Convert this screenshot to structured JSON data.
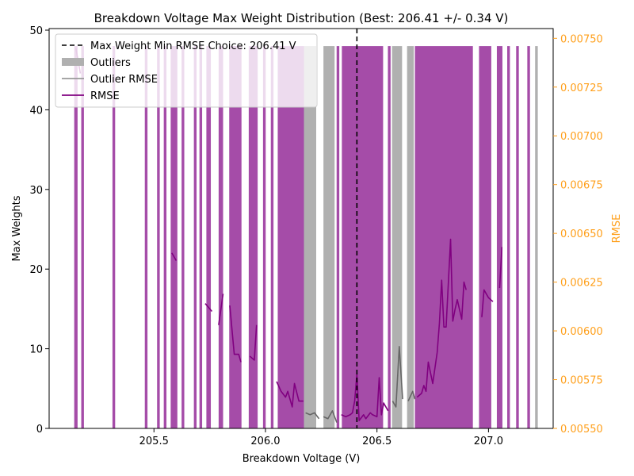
{
  "chart_data": {
    "type": "bar",
    "title": "Breakdown Voltage Max Weight Distribution (Best: 206.41 +/- 0.34 V)",
    "xlabel": "Breakdown Voltage (V)",
    "ylabel": "Max Weights",
    "y2label": "RMSE",
    "xlim": [
      205.03,
      207.29
    ],
    "ylim": [
      0,
      50.2
    ],
    "y2lim": [
      0.0055,
      0.00755
    ],
    "xticks": [
      "205.5",
      "206.0",
      "206.5",
      "207.0"
    ],
    "xtick_values": [
      205.5,
      206.0,
      206.5,
      207.0
    ],
    "yticks": [
      "0",
      "10",
      "20",
      "30",
      "40",
      "50"
    ],
    "ytick_values": [
      0,
      10,
      20,
      30,
      40,
      50
    ],
    "y2ticks": [
      "0.00550",
      "0.00575",
      "0.00600",
      "0.00625",
      "0.00650",
      "0.00675",
      "0.00700",
      "0.00725",
      "0.00750"
    ],
    "y2tick_values": [
      0.0055,
      0.00575,
      0.006,
      0.00625,
      0.0065,
      0.00675,
      0.007,
      0.00725,
      0.0075
    ],
    "grid": false,
    "legend_position": "top-left",
    "bar_height": 48,
    "colors": {
      "inlier_bar": "#a54ca8",
      "outlier_bar": "#b0b0b0",
      "rmse_line": "#800080",
      "outlier_rmse_line": "#666666",
      "best_line": "#000000",
      "right_axis": "#ff9f1a"
    },
    "best_choice": 206.41,
    "legend": [
      {
        "label": "Max Weight Min RMSE Choice: 206.41 V",
        "style": "dashed"
      },
      {
        "label": "Outliers",
        "style": "patch"
      },
      {
        "label": "Outlier RMSE",
        "style": "gray-line"
      },
      {
        "label": "RMSE",
        "style": "purple-line"
      }
    ],
    "bars": [
      {
        "x": 205.15,
        "w": 0.015,
        "outlier": false
      },
      {
        "x": 205.18,
        "w": 0.012,
        "outlier": false
      },
      {
        "x": 205.32,
        "w": 0.012,
        "outlier": false
      },
      {
        "x": 205.465,
        "w": 0.012,
        "outlier": false
      },
      {
        "x": 205.52,
        "w": 0.012,
        "outlier": false
      },
      {
        "x": 205.55,
        "w": 0.012,
        "outlier": false
      },
      {
        "x": 205.59,
        "w": 0.03,
        "outlier": false
      },
      {
        "x": 205.63,
        "w": 0.012,
        "outlier": false
      },
      {
        "x": 205.685,
        "w": 0.012,
        "outlier": false
      },
      {
        "x": 205.71,
        "w": 0.012,
        "outlier": false
      },
      {
        "x": 205.745,
        "w": 0.02,
        "outlier": false
      },
      {
        "x": 205.8,
        "w": 0.02,
        "outlier": false
      },
      {
        "x": 205.865,
        "w": 0.055,
        "outlier": false
      },
      {
        "x": 205.945,
        "w": 0.04,
        "outlier": false
      },
      {
        "x": 205.995,
        "w": 0.012,
        "outlier": false
      },
      {
        "x": 206.03,
        "w": 0.012,
        "outlier": false
      },
      {
        "x": 206.115,
        "w": 0.12,
        "outlier": false
      },
      {
        "x": 206.2,
        "w": 0.055,
        "outlier": true
      },
      {
        "x": 206.285,
        "w": 0.05,
        "outlier": true
      },
      {
        "x": 206.325,
        "w": 0.012,
        "outlier": false
      },
      {
        "x": 206.435,
        "w": 0.185,
        "outlier": false
      },
      {
        "x": 206.555,
        "w": 0.012,
        "outlier": false
      },
      {
        "x": 206.59,
        "w": 0.045,
        "outlier": true
      },
      {
        "x": 206.65,
        "w": 0.03,
        "outlier": true
      },
      {
        "x": 206.8,
        "w": 0.26,
        "outlier": false
      },
      {
        "x": 206.985,
        "w": 0.055,
        "outlier": false
      },
      {
        "x": 207.05,
        "w": 0.025,
        "outlier": false
      },
      {
        "x": 207.09,
        "w": 0.012,
        "outlier": false
      },
      {
        "x": 207.13,
        "w": 0.012,
        "outlier": false
      },
      {
        "x": 207.18,
        "w": 0.012,
        "outlier": false
      },
      {
        "x": 207.215,
        "w": 0.012,
        "outlier": true
      }
    ],
    "rmse_segments": [
      {
        "outlier": false,
        "points": [
          [
            205.15,
            0.00745
          ],
          [
            205.17,
            0.00732
          ]
        ]
      },
      {
        "outlier": false,
        "points": [
          [
            205.58,
            0.0064
          ],
          [
            205.6,
            0.00636
          ]
        ]
      },
      {
        "outlier": false,
        "points": [
          [
            205.73,
            0.00614
          ],
          [
            205.76,
            0.0061
          ]
        ]
      },
      {
        "outlier": false,
        "points": [
          [
            205.79,
            0.00603
          ],
          [
            205.81,
            0.00619
          ]
        ]
      },
      {
        "outlier": false,
        "points": [
          [
            205.84,
            0.00613
          ],
          [
            205.86,
            0.00588
          ],
          [
            205.88,
            0.00588
          ],
          [
            205.89,
            0.00584
          ]
        ]
      },
      {
        "outlier": false,
        "points": [
          [
            205.93,
            0.00587
          ],
          [
            205.95,
            0.00585
          ],
          [
            205.96,
            0.00603
          ]
        ]
      },
      {
        "outlier": false,
        "points": [
          [
            206.05,
            0.00574
          ],
          [
            206.07,
            0.00569
          ],
          [
            206.09,
            0.00566
          ],
          [
            206.1,
            0.00569
          ],
          [
            206.12,
            0.00561
          ],
          [
            206.13,
            0.00573
          ],
          [
            206.15,
            0.00564
          ],
          [
            206.17,
            0.00564
          ]
        ]
      },
      {
        "outlier": true,
        "points": [
          [
            206.18,
            0.00558
          ],
          [
            206.2,
            0.00557
          ],
          [
            206.22,
            0.00558
          ],
          [
            206.24,
            0.00555
          ]
        ]
      },
      {
        "outlier": true,
        "points": [
          [
            206.26,
            0.00556
          ],
          [
            206.28,
            0.00555
          ],
          [
            206.3,
            0.00559
          ],
          [
            206.32,
            0.00553
          ]
        ]
      },
      {
        "outlier": false,
        "points": [
          [
            206.34,
            0.00557
          ],
          [
            206.36,
            0.00556
          ],
          [
            206.38,
            0.00557
          ],
          [
            206.39,
            0.00558
          ],
          [
            206.4,
            0.00564
          ],
          [
            206.41,
            0.00578
          ],
          [
            206.42,
            0.00554
          ],
          [
            206.44,
            0.00557
          ],
          [
            206.45,
            0.00555
          ],
          [
            206.47,
            0.00558
          ],
          [
            206.48,
            0.00557
          ],
          [
            206.5,
            0.00556
          ],
          [
            206.51,
            0.00576
          ],
          [
            206.52,
            0.00557
          ],
          [
            206.53,
            0.00563
          ],
          [
            206.55,
            0.00559
          ]
        ]
      },
      {
        "outlier": true,
        "points": [
          [
            206.57,
            0.00564
          ],
          [
            206.585,
            0.00561
          ],
          [
            206.6,
            0.00592
          ],
          [
            206.615,
            0.00565
          ]
        ]
      },
      {
        "outlier": true,
        "points": [
          [
            206.64,
            0.00564
          ],
          [
            206.66,
            0.00569
          ],
          [
            206.67,
            0.00565
          ]
        ]
      },
      {
        "outlier": false,
        "points": [
          [
            206.68,
            0.00566
          ],
          [
            206.7,
            0.00568
          ],
          [
            206.71,
            0.00572
          ],
          [
            206.72,
            0.00569
          ],
          [
            206.73,
            0.00584
          ],
          [
            206.75,
            0.00573
          ],
          [
            206.76,
            0.00581
          ],
          [
            206.77,
            0.00589
          ],
          [
            206.78,
            0.00604
          ],
          [
            206.79,
            0.00626
          ],
          [
            206.8,
            0.00602
          ],
          [
            206.81,
            0.00602
          ],
          [
            206.83,
            0.00647
          ],
          [
            206.84,
            0.00605
          ],
          [
            206.85,
            0.00611
          ],
          [
            206.86,
            0.00616
          ],
          [
            206.88,
            0.00606
          ],
          [
            206.89,
            0.00625
          ],
          [
            206.9,
            0.00621
          ]
        ]
      },
      {
        "outlier": false,
        "points": [
          [
            206.97,
            0.00607
          ],
          [
            206.98,
            0.00621
          ],
          [
            207.0,
            0.00617
          ],
          [
            207.02,
            0.00615
          ]
        ]
      },
      {
        "outlier": false,
        "points": [
          [
            207.05,
            0.00622
          ],
          [
            207.06,
            0.00643
          ]
        ]
      }
    ]
  }
}
